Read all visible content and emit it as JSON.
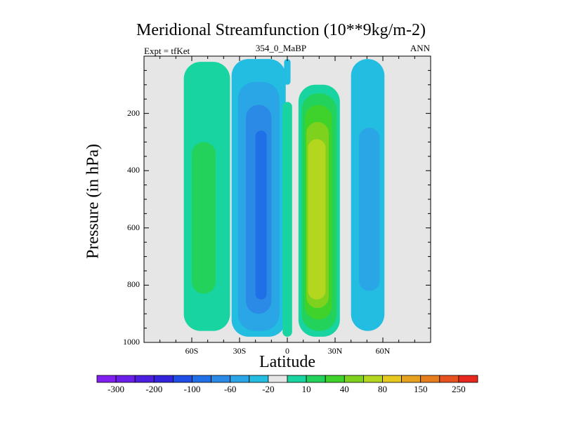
{
  "chart_data": {
    "type": "heatmap",
    "title": "Meridional Streamfunction (10**9kg/m-2)",
    "subtitle_left": "Expt = tfKet",
    "subtitle_center": "354_0_MaBP",
    "subtitle_right": "ANN",
    "xlabel": "Latitude",
    "ylabel": "Pressure (in hPa)",
    "xlim": [
      -90,
      90
    ],
    "ylim": [
      1000,
      0
    ],
    "y_inverted": true,
    "x_ticks": [
      {
        "value": -60,
        "label": "60S"
      },
      {
        "value": -30,
        "label": "30S"
      },
      {
        "value": 0,
        "label": "0"
      },
      {
        "value": 30,
        "label": "30N"
      },
      {
        "value": 60,
        "label": "60N"
      }
    ],
    "y_ticks": [
      {
        "value": 200,
        "label": "200"
      },
      {
        "value": 400,
        "label": "400"
      },
      {
        "value": 600,
        "label": "600"
      },
      {
        "value": 800,
        "label": "800"
      },
      {
        "value": 1000,
        "label": "1000"
      }
    ],
    "grid": false,
    "background_color": "#e6e6e6",
    "colorbar": {
      "placement": "bottom",
      "levels": [
        -300,
        -250,
        -200,
        -150,
        -100,
        -80,
        -60,
        -40,
        -20,
        -10,
        10,
        20,
        40,
        60,
        80,
        100,
        150,
        200,
        250,
        300
      ],
      "colors": [
        "#7f1ff0",
        "#6a1ee8",
        "#4c1ee0",
        "#3324dc",
        "#1f4ee6",
        "#1f6fe6",
        "#2a8ae6",
        "#2aa6e6",
        "#22bde0",
        "#e6e6e6",
        "#18d4a0",
        "#22d25a",
        "#3fd22a",
        "#7ed21e",
        "#b4d61e",
        "#e6c81e",
        "#e6a21e",
        "#e67e1e",
        "#e6521e",
        "#e6281e"
      ],
      "labels": [
        {
          "value": -300,
          "label": "-300"
        },
        {
          "value": -200,
          "label": "-200"
        },
        {
          "value": -100,
          "label": "-100"
        },
        {
          "value": -60,
          "label": "-60"
        },
        {
          "value": -20,
          "label": "-20"
        },
        {
          "value": 10,
          "label": "10"
        },
        {
          "value": 40,
          "label": "40"
        },
        {
          "value": 80,
          "label": "80"
        },
        {
          "value": 150,
          "label": "150"
        },
        {
          "value": 250,
          "label": "250"
        }
      ]
    },
    "cells": [
      {
        "name": "south-ferrel-10",
        "lat": [
          -65,
          -36
        ],
        "p": [
          20,
          960
        ],
        "color": "#18d4a0"
      },
      {
        "name": "south-ferrel-20",
        "lat": [
          -60,
          -45
        ],
        "p": [
          300,
          830
        ],
        "color": "#22d25a"
      },
      {
        "name": "south-hadley-10",
        "lat": [
          -35,
          -1
        ],
        "p": [
          10,
          980
        ],
        "color": "#22bde0"
      },
      {
        "name": "south-hadley-20",
        "lat": [
          -31,
          -5
        ],
        "p": [
          90,
          960
        ],
        "color": "#2aa6e6"
      },
      {
        "name": "south-hadley-40",
        "lat": [
          -26,
          -10
        ],
        "p": [
          170,
          900
        ],
        "color": "#2a8ae6"
      },
      {
        "name": "south-hadley-60",
        "lat": [
          -20,
          -13
        ],
        "p": [
          260,
          850
        ],
        "color": "#1f6fe6"
      },
      {
        "name": "north-hadley-10",
        "lat": [
          7,
          33
        ],
        "p": [
          100,
          980
        ],
        "color": "#18d4a0"
      },
      {
        "name": "north-hadley-20",
        "lat": [
          9,
          31
        ],
        "p": [
          130,
          960
        ],
        "color": "#22d25a"
      },
      {
        "name": "north-hadley-40",
        "lat": [
          11,
          28
        ],
        "p": [
          170,
          920
        ],
        "color": "#3fd22a"
      },
      {
        "name": "north-hadley-60",
        "lat": [
          12,
          26
        ],
        "p": [
          230,
          880
        ],
        "color": "#7ed21e"
      },
      {
        "name": "north-hadley-80",
        "lat": [
          13,
          24
        ],
        "p": [
          290,
          850
        ],
        "color": "#b4d61e"
      },
      {
        "name": "north-ferrel-10",
        "lat": [
          40,
          61
        ],
        "p": [
          10,
          960
        ],
        "color": "#22bde0"
      },
      {
        "name": "north-ferrel-20",
        "lat": [
          45,
          58
        ],
        "p": [
          250,
          820
        ],
        "color": "#2aa6e6"
      },
      {
        "name": "equator-10",
        "lat": [
          -3,
          3
        ],
        "p": [
          160,
          980
        ],
        "color": "#18d4a0"
      },
      {
        "name": "equator-minus",
        "lat": [
          -2,
          2
        ],
        "p": [
          10,
          100
        ],
        "color": "#22bde0"
      }
    ]
  }
}
